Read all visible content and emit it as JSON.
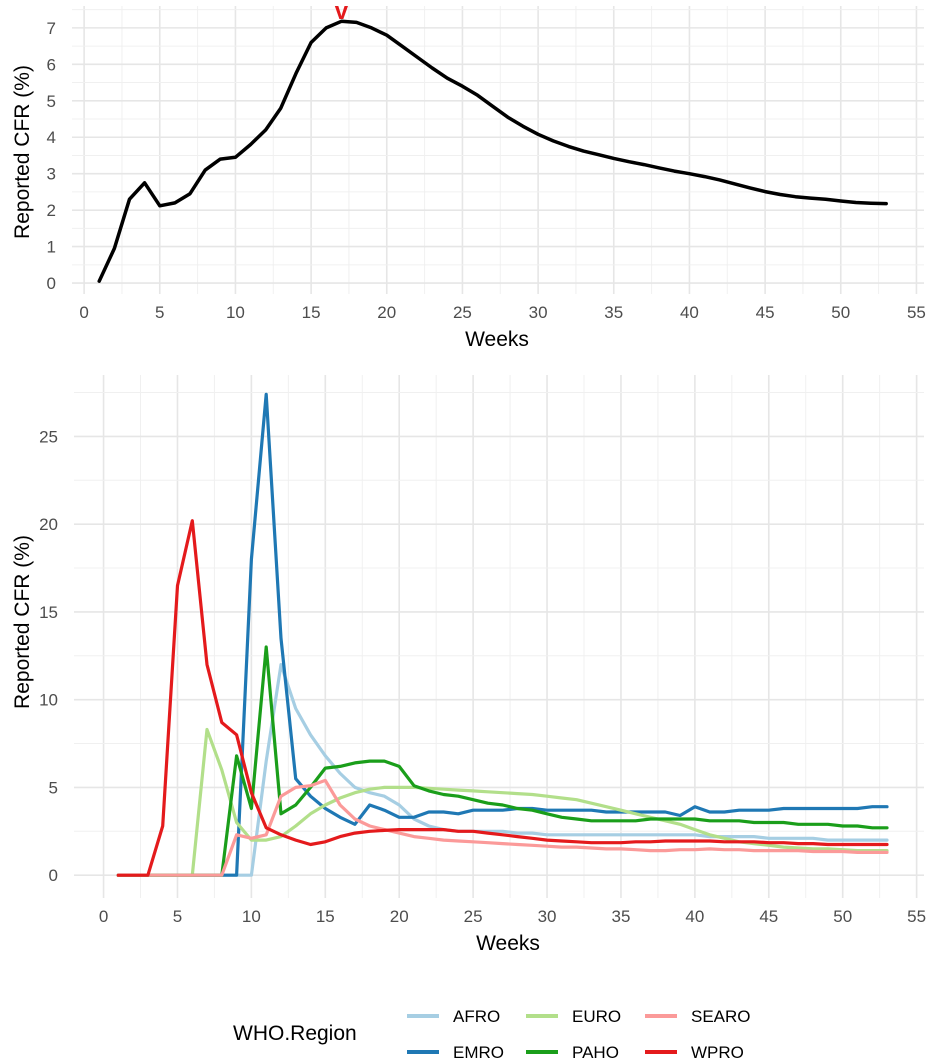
{
  "chart_data": [
    {
      "type": "line",
      "title": "",
      "xlabel": "Weeks",
      "ylabel": "Reported CFR (%)",
      "xlim": [
        -0.8,
        55.5
      ],
      "ylim": [
        -0.3,
        7.6
      ],
      "x_ticks": [
        "0",
        "5",
        "10",
        "15",
        "20",
        "25",
        "30",
        "35",
        "40",
        "45",
        "50",
        "55"
      ],
      "y_ticks": [
        "0",
        "1",
        "2",
        "3",
        "4",
        "5",
        "6",
        "7"
      ],
      "grid": true,
      "annotation": {
        "text": "v",
        "x": 17,
        "color": "#e41a1c"
      },
      "series": [
        {
          "color": "#000000",
          "x": [
            1,
            2,
            3,
            4,
            5,
            6,
            7,
            8,
            9,
            10,
            11,
            12,
            13,
            14,
            15,
            16,
            17,
            18,
            19,
            20,
            21,
            22,
            23,
            24,
            25,
            26,
            27,
            28,
            29,
            30,
            31,
            32,
            33,
            34,
            35,
            36,
            37,
            38,
            39,
            40,
            41,
            42,
            43,
            44,
            45,
            46,
            47,
            48,
            49,
            50,
            51,
            52,
            53
          ],
          "values": [
            0.05,
            0.95,
            2.3,
            2.75,
            2.12,
            2.2,
            2.45,
            3.1,
            3.4,
            3.45,
            3.8,
            4.2,
            4.8,
            5.75,
            6.6,
            7.0,
            7.18,
            7.15,
            7.0,
            6.8,
            6.5,
            6.2,
            5.9,
            5.62,
            5.4,
            5.15,
            4.85,
            4.55,
            4.3,
            4.08,
            3.9,
            3.75,
            3.62,
            3.52,
            3.42,
            3.33,
            3.25,
            3.16,
            3.07,
            3.0,
            2.92,
            2.83,
            2.72,
            2.61,
            2.51,
            2.43,
            2.37,
            2.33,
            2.3,
            2.25,
            2.21,
            2.19,
            2.18
          ]
        }
      ]
    },
    {
      "type": "line",
      "title": "",
      "xlabel": "Weeks",
      "ylabel": "Reported CFR (%)",
      "xlim": [
        -2.0,
        55.5
      ],
      "ylim": [
        -1.3,
        28.5
      ],
      "x_ticks": [
        "0",
        "5",
        "10",
        "15",
        "20",
        "25",
        "30",
        "35",
        "40",
        "45",
        "50",
        "55"
      ],
      "y_ticks": [
        "0",
        "5",
        "10",
        "15",
        "20",
        "25"
      ],
      "grid": true,
      "legend": {
        "title": "WHO.Region",
        "position": "bottom"
      },
      "series": [
        {
          "name": "AFRO",
          "color": "#a6cee3",
          "x": [
            1,
            2,
            3,
            4,
            5,
            6,
            7,
            8,
            9,
            10,
            11,
            12,
            13,
            14,
            15,
            16,
            17,
            18,
            19,
            20,
            21,
            22,
            23,
            24,
            25,
            26,
            27,
            28,
            29,
            30,
            31,
            32,
            33,
            34,
            35,
            36,
            37,
            38,
            39,
            40,
            41,
            42,
            43,
            44,
            45,
            46,
            47,
            48,
            49,
            50,
            51,
            52,
            53
          ],
          "values": [
            0,
            0,
            0,
            0,
            0,
            0,
            0,
            0,
            0,
            0,
            6.5,
            12.0,
            9.5,
            8.0,
            6.8,
            5.8,
            5.0,
            4.7,
            4.5,
            4.0,
            3.2,
            2.8,
            2.6,
            2.5,
            2.5,
            2.5,
            2.5,
            2.4,
            2.4,
            2.3,
            2.3,
            2.3,
            2.3,
            2.3,
            2.3,
            2.3,
            2.3,
            2.3,
            2.3,
            2.3,
            2.2,
            2.2,
            2.2,
            2.2,
            2.1,
            2.1,
            2.1,
            2.1,
            2.0,
            2.0,
            2.0,
            2.0,
            2.0
          ]
        },
        {
          "name": "EMRO",
          "color": "#1f78b4",
          "x": [
            1,
            2,
            3,
            4,
            5,
            6,
            7,
            8,
            9,
            10,
            11,
            12,
            13,
            14,
            15,
            16,
            17,
            18,
            19,
            20,
            21,
            22,
            23,
            24,
            25,
            26,
            27,
            28,
            29,
            30,
            31,
            32,
            33,
            34,
            35,
            36,
            37,
            38,
            39,
            40,
            41,
            42,
            43,
            44,
            45,
            46,
            47,
            48,
            49,
            50,
            51,
            52,
            53
          ],
          "values": [
            0,
            0,
            0,
            0,
            0,
            0,
            0,
            0,
            0,
            18.0,
            27.4,
            13.5,
            5.5,
            4.5,
            3.8,
            3.3,
            2.9,
            4.0,
            3.7,
            3.3,
            3.3,
            3.6,
            3.6,
            3.5,
            3.7,
            3.7,
            3.7,
            3.8,
            3.8,
            3.7,
            3.7,
            3.7,
            3.7,
            3.6,
            3.6,
            3.6,
            3.6,
            3.6,
            3.4,
            3.9,
            3.6,
            3.6,
            3.7,
            3.7,
            3.7,
            3.8,
            3.8,
            3.8,
            3.8,
            3.8,
            3.8,
            3.9,
            3.9
          ]
        },
        {
          "name": "EURO",
          "color": "#b2df8a",
          "x": [
            1,
            2,
            3,
            4,
            5,
            6,
            7,
            8,
            9,
            10,
            11,
            12,
            13,
            14,
            15,
            16,
            17,
            18,
            19,
            20,
            21,
            22,
            23,
            24,
            25,
            26,
            27,
            28,
            29,
            30,
            31,
            32,
            33,
            34,
            35,
            36,
            37,
            38,
            39,
            40,
            41,
            42,
            43,
            44,
            45,
            46,
            47,
            48,
            49,
            50,
            51,
            52,
            53
          ],
          "values": [
            0,
            0,
            0,
            0,
            0,
            0,
            8.3,
            6.0,
            3.0,
            2.0,
            2.0,
            2.2,
            2.8,
            3.5,
            4.0,
            4.4,
            4.7,
            4.9,
            5.0,
            5.0,
            5.0,
            4.95,
            4.9,
            4.85,
            4.8,
            4.75,
            4.7,
            4.65,
            4.6,
            4.5,
            4.4,
            4.3,
            4.1,
            3.9,
            3.7,
            3.5,
            3.3,
            3.1,
            2.9,
            2.6,
            2.3,
            2.1,
            1.9,
            1.8,
            1.7,
            1.6,
            1.55,
            1.5,
            1.5,
            1.45,
            1.4,
            1.4,
            1.4
          ]
        },
        {
          "name": "PAHO",
          "color": "#1a9e1a",
          "x": [
            1,
            2,
            3,
            4,
            5,
            6,
            7,
            8,
            9,
            10,
            11,
            12,
            13,
            14,
            15,
            16,
            17,
            18,
            19,
            20,
            21,
            22,
            23,
            24,
            25,
            26,
            27,
            28,
            29,
            30,
            31,
            32,
            33,
            34,
            35,
            36,
            37,
            38,
            39,
            40,
            41,
            42,
            43,
            44,
            45,
            46,
            47,
            48,
            49,
            50,
            51,
            52,
            53
          ],
          "values": [
            0,
            0,
            0,
            0,
            0,
            0,
            0,
            0,
            6.8,
            3.8,
            13.0,
            3.5,
            4.0,
            5.0,
            6.1,
            6.2,
            6.4,
            6.5,
            6.5,
            6.2,
            5.1,
            4.8,
            4.6,
            4.5,
            4.3,
            4.1,
            4.0,
            3.8,
            3.7,
            3.5,
            3.3,
            3.2,
            3.1,
            3.1,
            3.1,
            3.1,
            3.2,
            3.2,
            3.2,
            3.2,
            3.1,
            3.1,
            3.1,
            3.0,
            3.0,
            3.0,
            2.9,
            2.9,
            2.9,
            2.8,
            2.8,
            2.7,
            2.7
          ]
        },
        {
          "name": "SEARO",
          "color": "#fb9a99",
          "x": [
            1,
            2,
            3,
            4,
            5,
            6,
            7,
            8,
            9,
            10,
            11,
            12,
            13,
            14,
            15,
            16,
            17,
            18,
            19,
            20,
            21,
            22,
            23,
            24,
            25,
            26,
            27,
            28,
            29,
            30,
            31,
            32,
            33,
            34,
            35,
            36,
            37,
            38,
            39,
            40,
            41,
            42,
            43,
            44,
            45,
            46,
            47,
            48,
            49,
            50,
            51,
            52,
            53
          ],
          "values": [
            0,
            0,
            0,
            0,
            0,
            0,
            0,
            0,
            2.3,
            2.1,
            2.3,
            4.5,
            5.0,
            5.1,
            5.4,
            4.0,
            3.2,
            2.8,
            2.6,
            2.4,
            2.2,
            2.1,
            2.0,
            1.95,
            1.9,
            1.85,
            1.8,
            1.75,
            1.7,
            1.65,
            1.6,
            1.6,
            1.55,
            1.5,
            1.5,
            1.45,
            1.4,
            1.4,
            1.45,
            1.45,
            1.5,
            1.45,
            1.45,
            1.4,
            1.4,
            1.4,
            1.4,
            1.35,
            1.35,
            1.35,
            1.3,
            1.3,
            1.3
          ]
        },
        {
          "name": "WPRO",
          "color": "#e41a1c",
          "x": [
            1,
            2,
            3,
            4,
            5,
            6,
            7,
            8,
            9,
            10,
            11,
            12,
            13,
            14,
            15,
            16,
            17,
            18,
            19,
            20,
            21,
            22,
            23,
            24,
            25,
            26,
            27,
            28,
            29,
            30,
            31,
            32,
            33,
            34,
            35,
            36,
            37,
            38,
            39,
            40,
            41,
            42,
            43,
            44,
            45,
            46,
            47,
            48,
            49,
            50,
            51,
            52,
            53
          ],
          "values": [
            0,
            0,
            0,
            2.8,
            16.5,
            20.2,
            12.0,
            8.7,
            8.0,
            4.7,
            2.7,
            2.3,
            2.0,
            1.75,
            1.9,
            2.2,
            2.4,
            2.5,
            2.55,
            2.6,
            2.6,
            2.6,
            2.6,
            2.5,
            2.5,
            2.4,
            2.3,
            2.2,
            2.1,
            2.0,
            1.95,
            1.9,
            1.85,
            1.85,
            1.85,
            1.9,
            1.9,
            1.95,
            1.95,
            1.95,
            1.95,
            1.9,
            1.9,
            1.9,
            1.85,
            1.85,
            1.8,
            1.8,
            1.75,
            1.75,
            1.75,
            1.75,
            1.75
          ]
        }
      ]
    }
  ]
}
